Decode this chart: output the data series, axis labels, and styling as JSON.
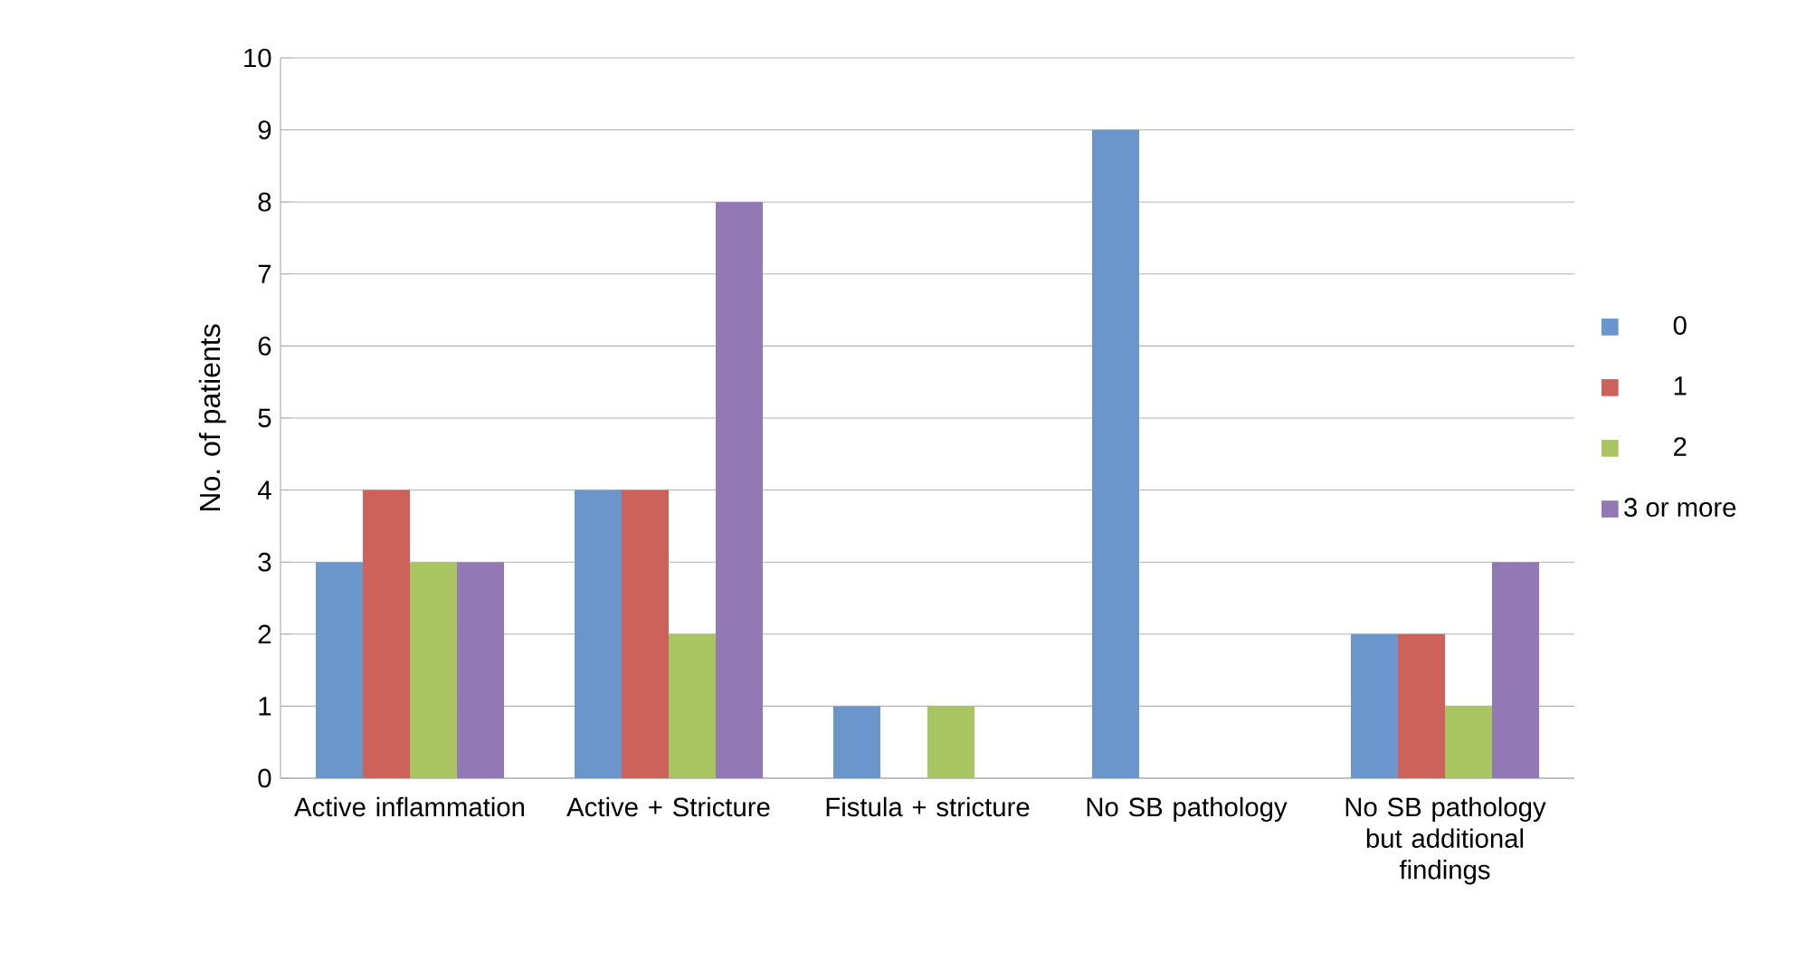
{
  "chart_data": {
    "type": "bar",
    "ylabel": "No. of patients",
    "categories": [
      "Active inflammation",
      "Active + Stricture",
      "Fistula + stricture",
      "No SB pathology",
      "No SB pathology but additional findings"
    ],
    "series": [
      {
        "name": "0",
        "color": "#6a96cc",
        "values": [
          3,
          4,
          1,
          9,
          2
        ]
      },
      {
        "name": "1",
        "color": "#cc625a",
        "values": [
          4,
          4,
          0,
          0,
          2
        ]
      },
      {
        "name": "2",
        "color": "#a9c561",
        "values": [
          3,
          2,
          1,
          0,
          1
        ]
      },
      {
        "name": "3 or more",
        "color": "#9279b5",
        "values": [
          3,
          8,
          0,
          0,
          3
        ]
      }
    ],
    "ylim": [
      0,
      10
    ],
    "yticks": [
      0,
      1,
      2,
      3,
      4,
      5,
      6,
      7,
      8,
      9,
      10
    ],
    "grid": "y",
    "legend": "right"
  }
}
